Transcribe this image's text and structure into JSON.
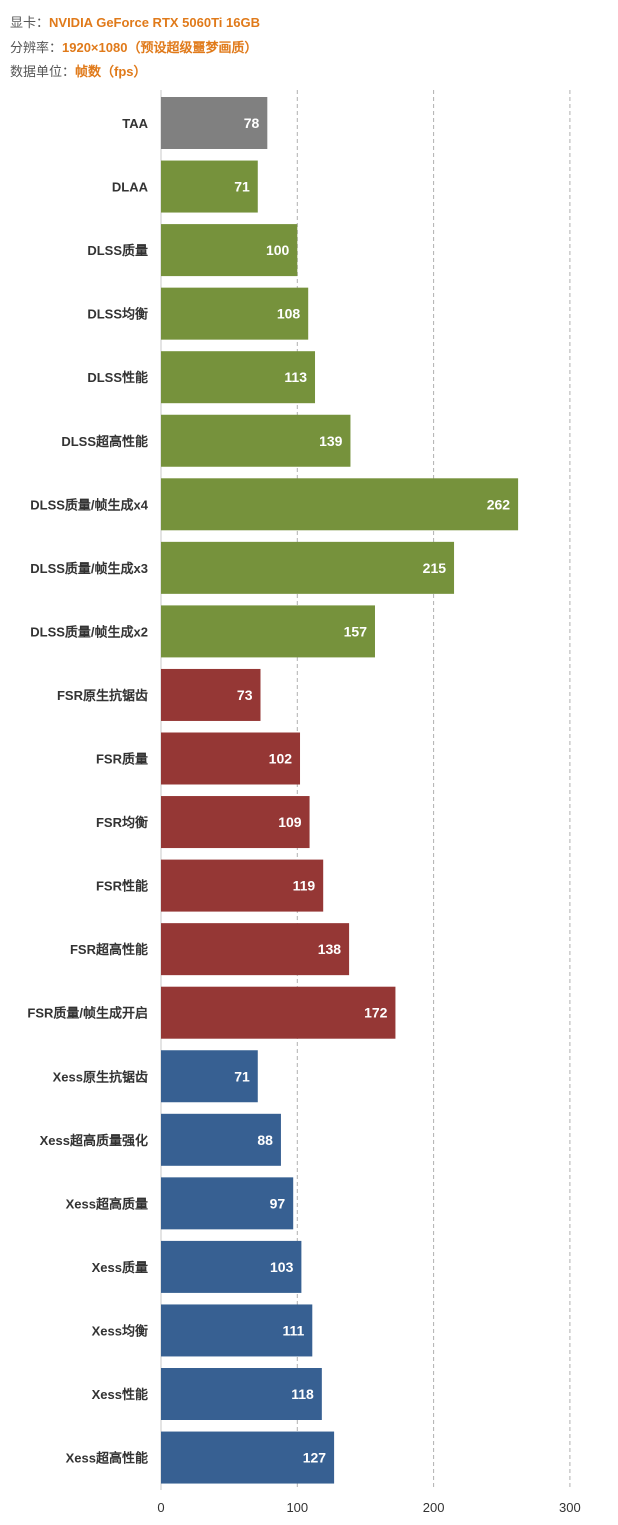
{
  "meta": {
    "gpu_label": "显卡：",
    "gpu_value": "NVIDIA GeForce RTX 5060Ti 16GB",
    "res_label": "分辨率：",
    "res_value": "1920×1080（预设超级噩梦画质）",
    "unit_label": "数据单位：",
    "unit_value": "帧数（fps）"
  },
  "chart_data": {
    "type": "bar",
    "orientation": "horizontal",
    "xlim": [
      0,
      300
    ],
    "xticks": [
      0,
      100,
      200,
      300
    ],
    "grid": true,
    "bars": [
      {
        "label": "TAA",
        "value": 78,
        "color": "#808080"
      },
      {
        "label": "DLAA",
        "value": 71,
        "color": "#76923c"
      },
      {
        "label": "DLSS质量",
        "value": 100,
        "color": "#76923c"
      },
      {
        "label": "DLSS均衡",
        "value": 108,
        "color": "#76923c"
      },
      {
        "label": "DLSS性能",
        "value": 113,
        "color": "#76923c"
      },
      {
        "label": "DLSS超高性能",
        "value": 139,
        "color": "#76923c"
      },
      {
        "label": "DLSS质量/帧生成x4",
        "value": 262,
        "color": "#76923c"
      },
      {
        "label": "DLSS质量/帧生成x3",
        "value": 215,
        "color": "#76923c"
      },
      {
        "label": "DLSS质量/帧生成x2",
        "value": 157,
        "color": "#76923c"
      },
      {
        "label": "FSR原生抗锯齿",
        "value": 73,
        "color": "#953735"
      },
      {
        "label": "FSR质量",
        "value": 102,
        "color": "#953735"
      },
      {
        "label": "FSR均衡",
        "value": 109,
        "color": "#953735"
      },
      {
        "label": "FSR性能",
        "value": 119,
        "color": "#953735"
      },
      {
        "label": "FSR超高性能",
        "value": 138,
        "color": "#953735"
      },
      {
        "label": "FSR质量/帧生成开启",
        "value": 172,
        "color": "#953735"
      },
      {
        "label": "Xess原生抗锯齿",
        "value": 71,
        "color": "#376092"
      },
      {
        "label": "Xess超高质量强化",
        "value": 88,
        "color": "#376092"
      },
      {
        "label": "Xess超高质量",
        "value": 97,
        "color": "#376092"
      },
      {
        "label": "Xess质量",
        "value": 103,
        "color": "#376092"
      },
      {
        "label": "Xess均衡",
        "value": 111,
        "color": "#376092"
      },
      {
        "label": "Xess性能",
        "value": 118,
        "color": "#376092"
      },
      {
        "label": "Xess超高性能",
        "value": 127,
        "color": "#376092"
      }
    ]
  }
}
